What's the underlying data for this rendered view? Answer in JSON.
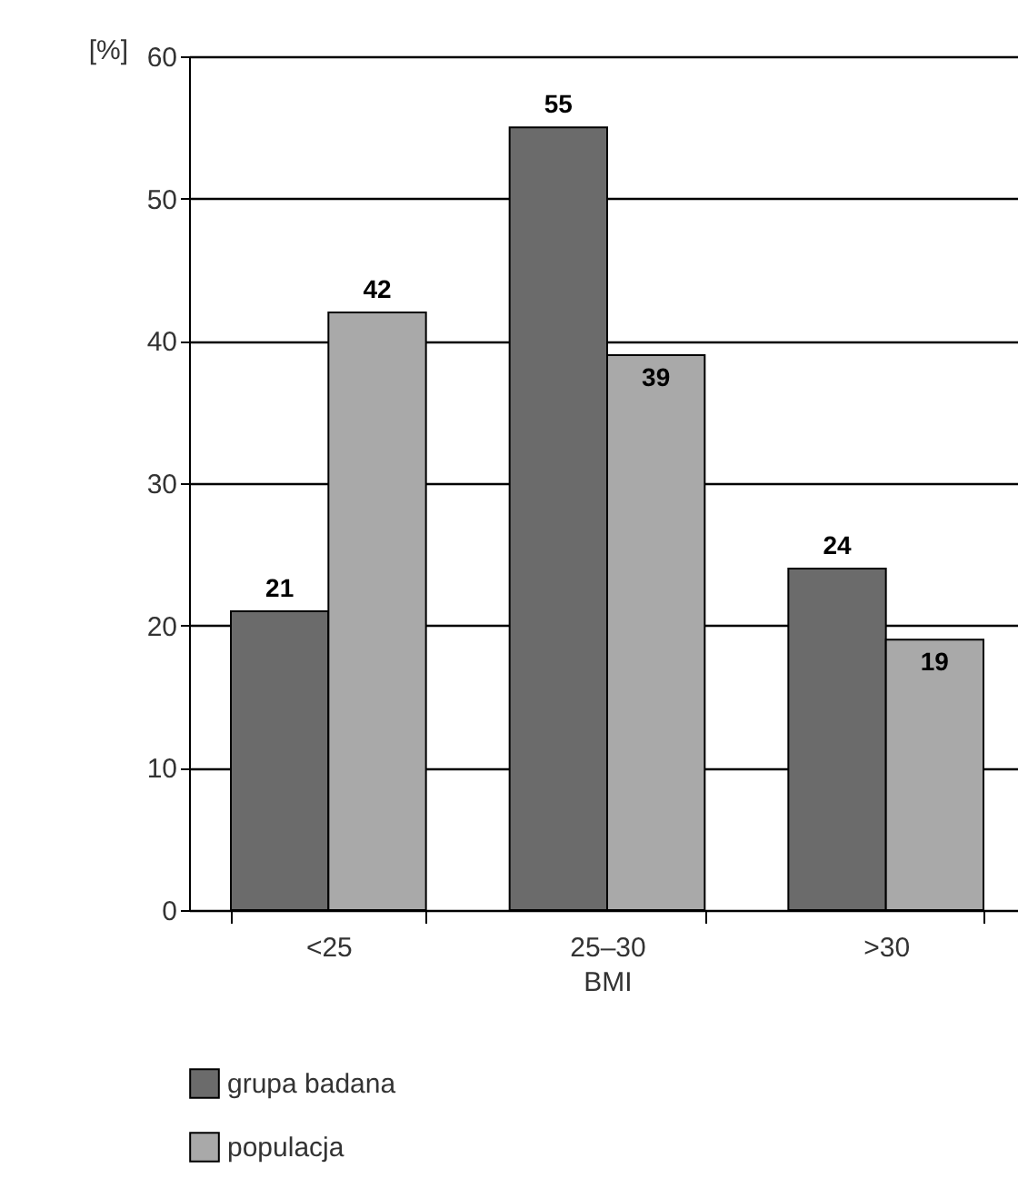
{
  "chart_data": {
    "type": "bar",
    "xlabel": "BMI",
    "ylabel": "[%]",
    "categories": [
      "<25",
      "25–30",
      ">30"
    ],
    "series": [
      {
        "name": "grupa badana",
        "color": "#6b6b6b",
        "values": [
          21,
          55,
          24
        ]
      },
      {
        "name": "populacja",
        "color": "#a9a9a9",
        "values": [
          42,
          39,
          19
        ]
      }
    ],
    "ylim": [
      0,
      60
    ],
    "yticks": [
      0,
      10,
      20,
      30,
      40,
      50,
      60
    ],
    "grid": "y",
    "data_labels": true,
    "legend": "bottom"
  }
}
